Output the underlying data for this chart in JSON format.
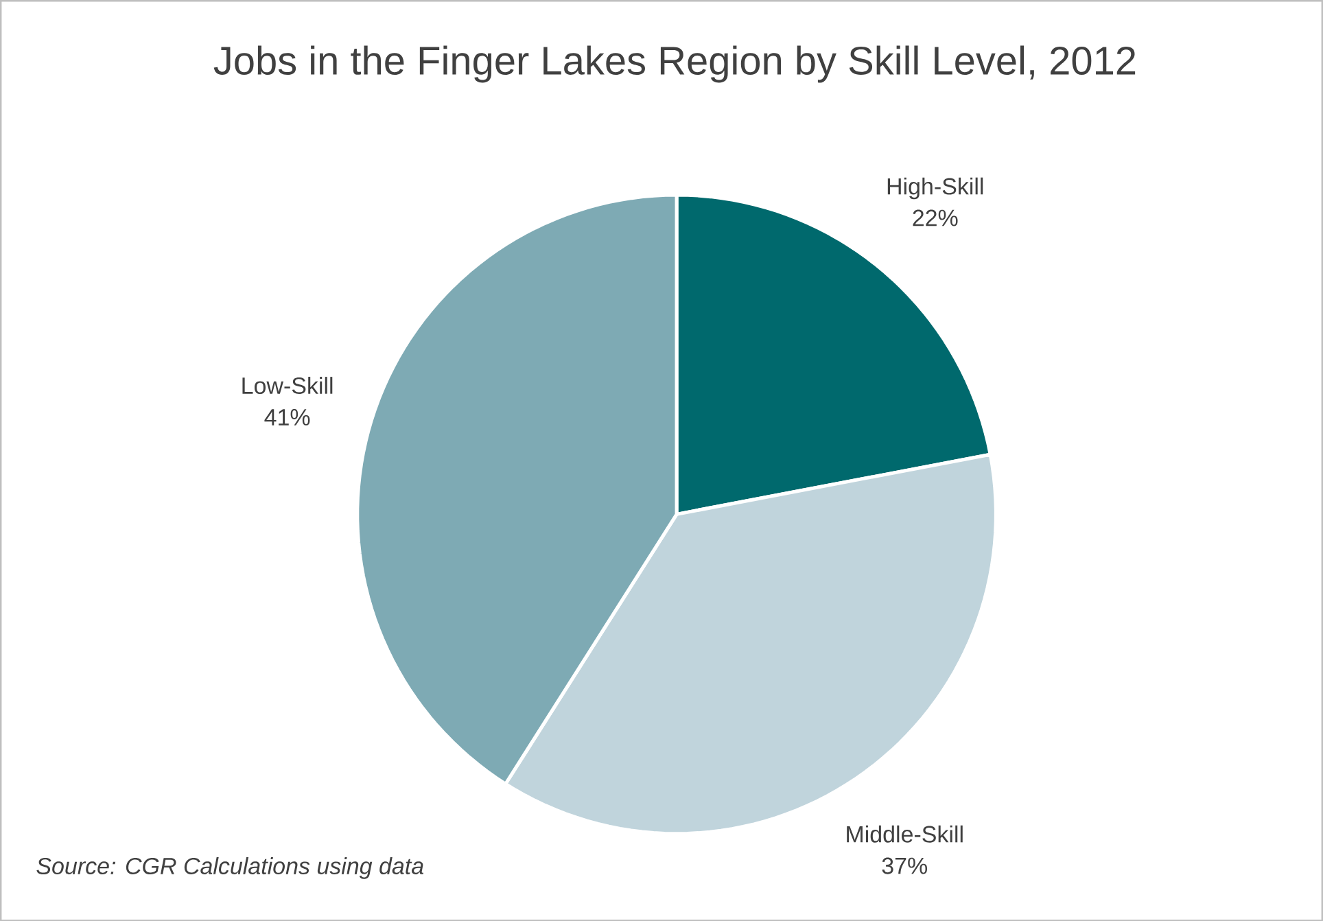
{
  "chart_data": {
    "type": "pie",
    "title": "Jobs in the Finger Lakes Region by Skill Level, 2012",
    "categories": [
      "High-Skill",
      "Middle-Skill",
      "Low-Skill"
    ],
    "values": [
      22,
      37,
      41
    ],
    "value_labels": [
      "22%",
      "37%",
      "41%"
    ],
    "colors": [
      "#00696d",
      "#c0d4dc",
      "#7eaab4"
    ],
    "annotations": [
      "Source: CGR Calculations using data"
    ]
  }
}
